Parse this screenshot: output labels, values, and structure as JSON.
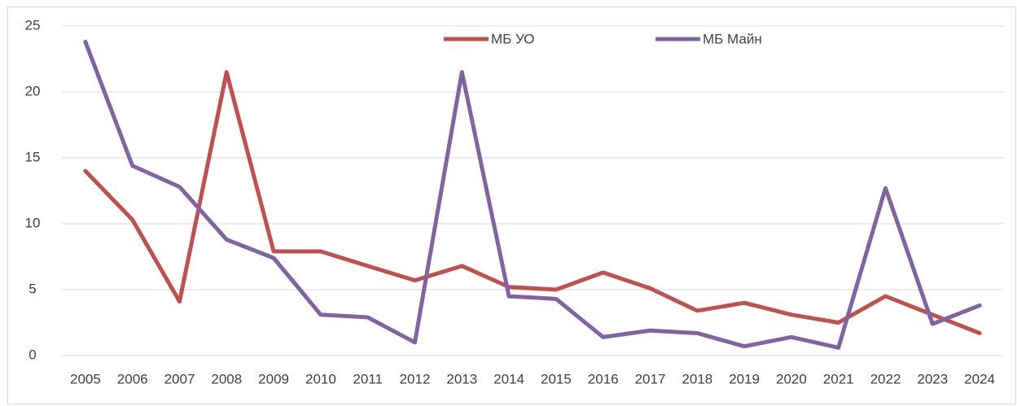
{
  "chart_data": {
    "type": "line",
    "categories": [
      "2005",
      "2006",
      "2007",
      "2008",
      "2009",
      "2010",
      "2011",
      "2012",
      "2013",
      "2014",
      "2015",
      "2016",
      "2017",
      "2018",
      "2019",
      "2020",
      "2021",
      "2022",
      "2023",
      "2024"
    ],
    "series": [
      {
        "name": "МБ УО",
        "color": "#c0504d",
        "values": [
          14.0,
          10.3,
          4.1,
          21.5,
          7.9,
          7.9,
          6.8,
          5.7,
          6.8,
          5.2,
          5.0,
          6.3,
          5.1,
          3.4,
          4.0,
          3.1,
          2.5,
          4.5,
          3.1,
          1.7
        ]
      },
      {
        "name": "МБ Майн",
        "color": "#8064a2",
        "values": [
          23.8,
          14.4,
          12.8,
          8.8,
          7.4,
          3.1,
          2.9,
          1.0,
          21.5,
          4.5,
          4.3,
          1.4,
          1.9,
          1.7,
          0.7,
          1.4,
          0.6,
          12.7,
          2.4,
          3.8
        ]
      }
    ],
    "ylim": [
      0,
      25
    ],
    "yticks": [
      0,
      5,
      10,
      15,
      20,
      25
    ],
    "grid": true,
    "legend": "top"
  }
}
